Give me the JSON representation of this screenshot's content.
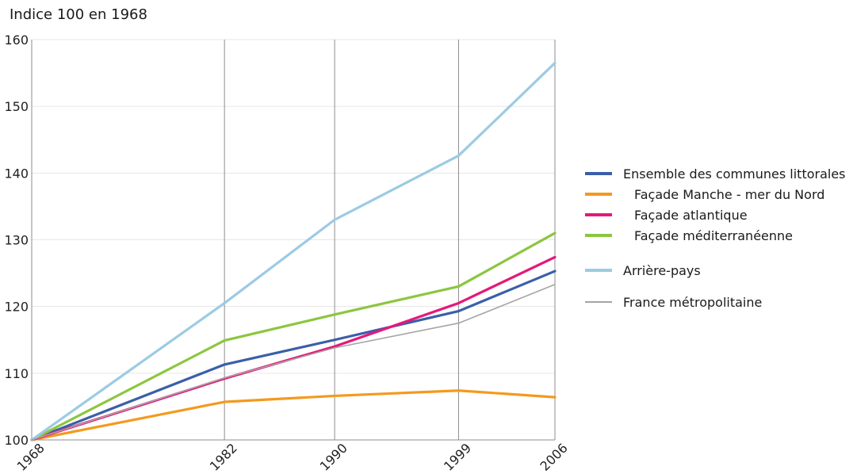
{
  "chart_data": {
    "type": "line",
    "title": "",
    "ylabel": "Indice 100 en 1968",
    "xlabel": "",
    "x": [
      1968,
      1982,
      1990,
      1999,
      2006
    ],
    "xlim": [
      1968,
      2006
    ],
    "ylim": [
      100,
      160
    ],
    "yticks": [
      100,
      110,
      120,
      130,
      140,
      150,
      160
    ],
    "grid": "vertical lines at x ticks",
    "legend_position": "right",
    "series": [
      {
        "name": "Ensemble des communes littorales",
        "color": "#3a5fa8",
        "values": [
          100,
          111.3,
          115.0,
          119.3,
          125.3
        ]
      },
      {
        "name": "Façade Manche - mer du Nord",
        "color": "#f39a1e",
        "values": [
          100,
          105.7,
          106.6,
          107.4,
          106.4
        ]
      },
      {
        "name": "Façade atlantique",
        "color": "#e4197a",
        "values": [
          100,
          109.2,
          114.0,
          120.5,
          127.4
        ]
      },
      {
        "name": "Façade méditerranéenne",
        "color": "#8cc63f",
        "values": [
          100,
          114.9,
          118.8,
          123.0,
          131.0
        ]
      },
      {
        "name": "Arrière-pays",
        "color": "#9ccbe3",
        "values": [
          100,
          120.5,
          133.0,
          142.6,
          156.5
        ]
      },
      {
        "name": "France métropolitaine",
        "color": "#a5a5a5",
        "values": [
          100,
          109.3,
          113.8,
          117.5,
          123.3
        ]
      }
    ]
  }
}
